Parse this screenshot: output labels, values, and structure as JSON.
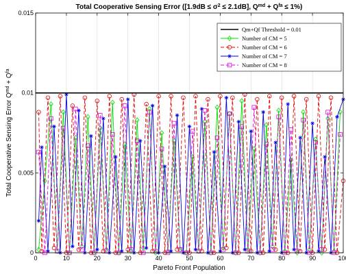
{
  "chart_data": {
    "type": "line",
    "title": "Total Cooperative Sensing Error ([1.9dB ≤ σ² ≤ 2.1dB], Qmd + Qfa ≤ 1%)",
    "title_parts": {
      "prefix": "Total Cooperative Sensing Error ([1.9dB ≤ σ",
      "sup_sigma": "2",
      "middle": " ≤ 2.1dB], Q",
      "sup_md": "md",
      "plus": " + Q",
      "sup_fa": "fa",
      "suffix": " ≤ 1%)"
    },
    "xlabel": "Pareto Front Population",
    "ylabel_parts": {
      "prefix": "Total Cooperative Sensing Error Q",
      "sup_md": "md",
      "plus": " + Q",
      "sup_fa": "fa"
    },
    "xlim": [
      0,
      100
    ],
    "ylim": [
      0,
      0.015
    ],
    "xticks": [
      0,
      10,
      20,
      30,
      40,
      50,
      60,
      70,
      80,
      90,
      100
    ],
    "yticks": [
      0,
      0.005,
      0.01,
      0.015
    ],
    "ytick_labels": [
      "0",
      "0.005",
      "0.01",
      "0.015"
    ],
    "grid": true,
    "legend_position": "top-right",
    "threshold": {
      "name": "Qm+Qf Threshold = 0.01",
      "value": 0.01,
      "color": "#000000"
    },
    "series": [
      {
        "name": "Number of CM = 5",
        "color": "#00e000",
        "marker": "diamond",
        "dash": "solid",
        "x": [
          1,
          3,
          5,
          7,
          9,
          11,
          13,
          15,
          17,
          19,
          21,
          23,
          25,
          27,
          29,
          31,
          33,
          35,
          37,
          39,
          41,
          43,
          45,
          47,
          49,
          51,
          53,
          55,
          57,
          59,
          61,
          63,
          65,
          67,
          69,
          71,
          73,
          75,
          77,
          79,
          81,
          83,
          85,
          87,
          89,
          91,
          93,
          95,
          97,
          99
        ],
        "values": [
          0.0002,
          0.0045,
          0.0093,
          0.0001,
          0.0088,
          0.0,
          0.0072,
          0.0004,
          0.0085,
          0.0,
          0.0078,
          0.0002,
          0.0094,
          0.0,
          0.0068,
          0.0001,
          0.0083,
          0.0003,
          0.009,
          0.0,
          0.0075,
          0.0001,
          0.007,
          0.0002,
          0.0,
          0.006,
          0.0001,
          0.0082,
          0.0,
          0.0091,
          0.0003,
          0.0087,
          0.0,
          0.0095,
          0.0002,
          0.0065,
          0.0,
          0.008,
          0.0004,
          0.0089,
          0.0001,
          0.0058,
          0.0,
          0.0088,
          0.0002,
          0.0071,
          0.0,
          0.0084,
          0.0001,
          0.0088
        ]
      },
      {
        "name": "Number of CM = 6",
        "color": "#e00000",
        "marker": "circle",
        "dash": "dashed",
        "x": [
          1,
          2,
          4,
          6,
          8,
          10,
          12,
          14,
          16,
          18,
          20,
          22,
          24,
          26,
          28,
          30,
          32,
          34,
          36,
          38,
          40,
          42,
          44,
          46,
          48,
          50,
          52,
          54,
          56,
          58,
          60,
          62,
          64,
          66,
          68,
          70,
          72,
          74,
          76,
          78,
          80,
          82,
          84,
          86,
          88,
          90,
          92,
          94,
          96,
          98,
          100
        ],
        "values": [
          0.0088,
          0.0001,
          0.0097,
          0.0003,
          0.0098,
          0.0,
          0.0092,
          0.0002,
          0.0097,
          0.0,
          0.0095,
          0.0001,
          0.0098,
          0.0,
          0.0096,
          0.0002,
          0.0099,
          0.0,
          0.0093,
          0.0001,
          0.0098,
          0.0,
          0.0098,
          0.0002,
          0.0097,
          0.0,
          0.0098,
          0.0001,
          0.0096,
          0.0,
          0.0098,
          0.0003,
          0.0097,
          0.0,
          0.0099,
          0.0001,
          0.0096,
          0.0,
          0.0098,
          0.0002,
          0.0097,
          0.0,
          0.0098,
          0.0001,
          0.0096,
          0.0,
          0.0098,
          0.0002,
          0.0097,
          0.0,
          0.0045
        ]
      },
      {
        "name": "Number of CM = 7",
        "color": "#0000e0",
        "marker": "asterisk",
        "dash": "solid",
        "x": [
          1,
          2,
          4,
          6,
          8,
          10,
          12,
          14,
          16,
          18,
          20,
          22,
          24,
          26,
          28,
          30,
          32,
          34,
          36,
          38,
          40,
          42,
          44,
          46,
          48,
          50,
          52,
          54,
          56,
          58,
          60,
          62,
          64,
          66,
          68,
          70,
          72,
          74,
          76,
          78,
          80,
          82,
          84,
          86,
          88,
          90,
          92,
          94,
          96,
          98,
          100
        ],
        "values": [
          0.002,
          0.0066,
          0.0001,
          0.0079,
          0.0,
          0.0099,
          0.0004,
          0.0089,
          0.0,
          0.0073,
          0.0002,
          0.0084,
          0.0,
          0.006,
          0.0001,
          0.0096,
          0.0,
          0.007,
          0.0003,
          0.0092,
          0.0,
          0.0054,
          0.0001,
          0.0086,
          0.0,
          0.0079,
          0.0002,
          0.009,
          0.0,
          0.0063,
          0.0001,
          0.0097,
          0.0,
          0.0082,
          0.0002,
          0.0076,
          0.0,
          0.0088,
          0.0001,
          0.0069,
          0.0,
          0.0093,
          0.0002,
          0.0072,
          0.0,
          0.0081,
          0.0001,
          0.006,
          0.0,
          0.0085,
          0.0096
        ]
      },
      {
        "name": "Number of CM = 8",
        "color": "#e000e0",
        "marker": "square",
        "dash": "dashed",
        "x": [
          1,
          3,
          5,
          7,
          9,
          11,
          13,
          15,
          17,
          19,
          21,
          23,
          25,
          27,
          29,
          31,
          33,
          35,
          37,
          39,
          41,
          43,
          45,
          47,
          49,
          51,
          53,
          55,
          57,
          59,
          61,
          63,
          65,
          67,
          69,
          71,
          73,
          75,
          77,
          79,
          81,
          83,
          85,
          87,
          89,
          91,
          93,
          95,
          97,
          99
        ],
        "values": [
          0.0063,
          0.0,
          0.0084,
          0.0001,
          0.0078,
          0.0,
          0.009,
          0.0002,
          0.0067,
          0.0,
          0.0086,
          0.0001,
          0.0074,
          0.0,
          0.0092,
          0.0002,
          0.007,
          0.0,
          0.0088,
          0.0001,
          0.0065,
          0.0,
          0.0081,
          0.0002,
          0.0,
          0.0076,
          0.0001,
          0.0089,
          0.0,
          0.0072,
          0.0002,
          0.0087,
          0.0,
          0.0079,
          0.0001,
          0.0091,
          0.0,
          0.0068,
          0.0002,
          0.0085,
          0.0,
          0.0077,
          0.0001,
          0.0083,
          0.0,
          0.0069,
          0.0002,
          0.0088,
          0.0,
          0.0074
        ]
      }
    ]
  }
}
